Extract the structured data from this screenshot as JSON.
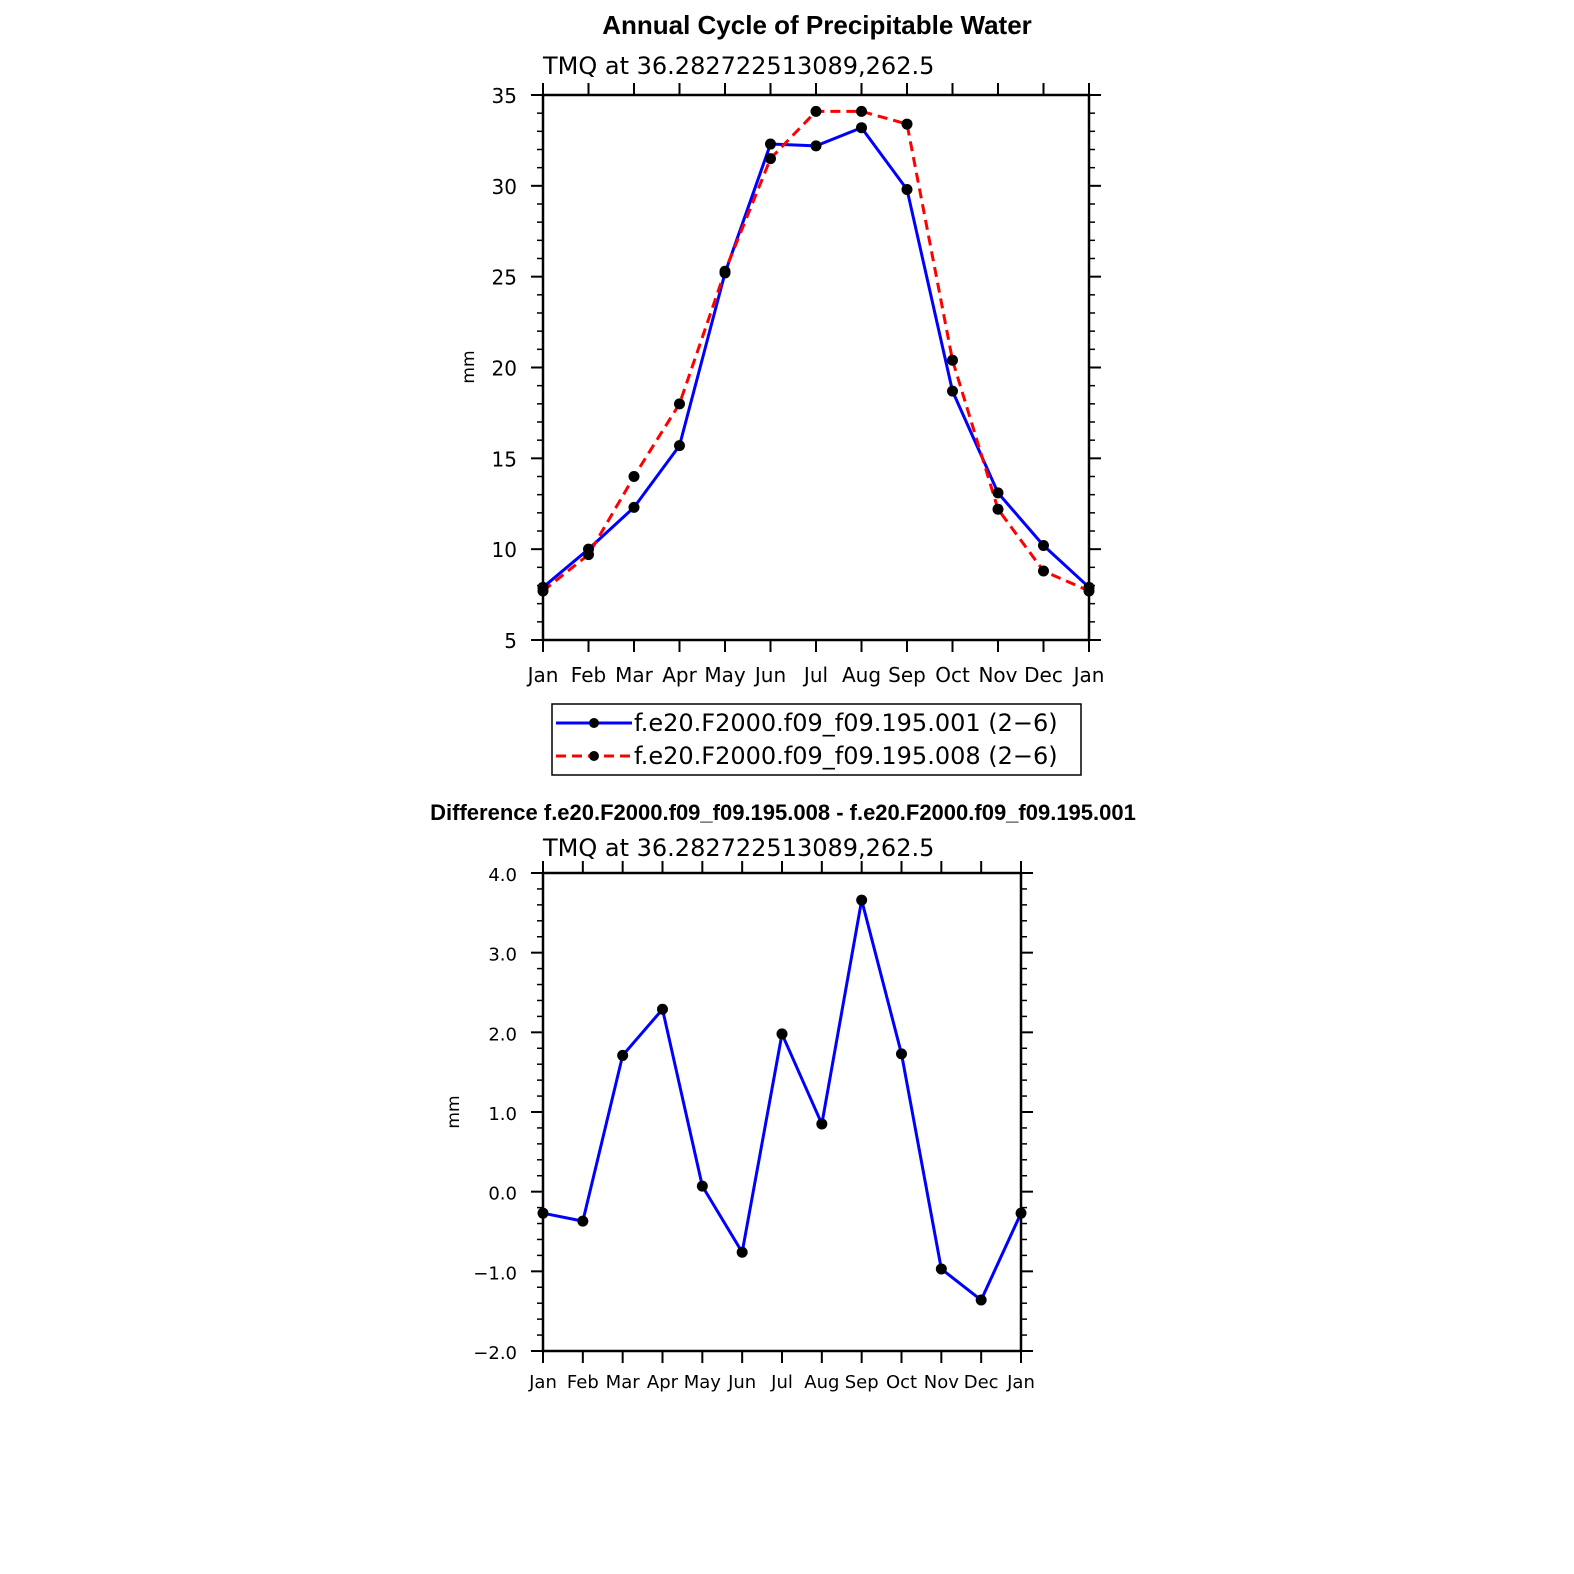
{
  "chart_data": [
    {
      "type": "line",
      "title": "Annual Cycle of Precipitable Water",
      "subtitle": "TMQ  at  36.282722513089,262.5",
      "xlabel": "",
      "ylabel": "mm",
      "categories": [
        "Jan",
        "Feb",
        "Mar",
        "Apr",
        "May",
        "Jun",
        "Jul",
        "Aug",
        "Sep",
        "Oct",
        "Nov",
        "Dec",
        "Jan"
      ],
      "ylim": [
        5,
        35
      ],
      "yticks": [
        "5",
        "10",
        "15",
        "20",
        "25",
        "30",
        "35"
      ],
      "grid": false,
      "legend_position": "bottom",
      "series": [
        {
          "name": "f.e20.F2000.f09_f09.195.001 (2−6)",
          "color": "#0000ff",
          "dash": "solid",
          "values": [
            7.9,
            10.0,
            12.3,
            15.7,
            25.2,
            32.3,
            32.2,
            33.2,
            29.8,
            18.7,
            13.1,
            10.2,
            7.9
          ]
        },
        {
          "name": "f.e20.F2000.f09_f09.195.008 (2−6)",
          "color": "#ff0000",
          "dash": "dashed",
          "values": [
            7.7,
            9.7,
            14.0,
            18.0,
            25.3,
            31.5,
            34.1,
            34.1,
            33.4,
            20.4,
            12.2,
            8.8,
            7.7
          ]
        }
      ]
    },
    {
      "type": "line",
      "title": "Difference f.e20.F2000.f09_f09.195.008 - f.e20.F2000.f09_f09.195.001",
      "subtitle": "TMQ  at  36.282722513089,262.5",
      "xlabel": "",
      "ylabel": "mm",
      "categories": [
        "Jan",
        "Feb",
        "Mar",
        "Apr",
        "May",
        "Jun",
        "Jul",
        "Aug",
        "Sep",
        "Oct",
        "Nov",
        "Dec",
        "Jan"
      ],
      "ylim": [
        -2.0,
        4.0
      ],
      "yticks": [
        "−2.0",
        "−1.0",
        "0.0",
        "1.0",
        "2.0",
        "3.0",
        "4.0"
      ],
      "grid": false,
      "series": [
        {
          "color": "#0000ff",
          "dash": "solid",
          "values": [
            -0.27,
            -0.37,
            1.71,
            2.29,
            0.07,
            -0.76,
            1.98,
            0.85,
            3.66,
            1.73,
            -0.97,
            -1.36,
            -0.27
          ]
        }
      ]
    }
  ]
}
